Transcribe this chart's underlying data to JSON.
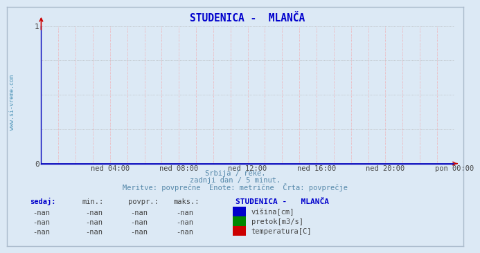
{
  "title": "STUDENICA -  MLANČA",
  "title_color": "#0000cc",
  "background_color": "#dce9f5",
  "plot_bg_color": "#dce9f5",
  "grid_color_h": "#b0b0b0",
  "grid_color_v": "#ff8888",
  "axis_color": "#0000bb",
  "x_tick_labels": [
    "ned 04:00",
    "ned 08:00",
    "ned 12:00",
    "ned 16:00",
    "ned 20:00",
    "pon 00:00"
  ],
  "x_tick_positions": [
    0.1667,
    0.3333,
    0.5,
    0.6667,
    0.8333,
    1.0
  ],
  "y_ticks": [
    0,
    1
  ],
  "ylim": [
    0,
    1
  ],
  "xlim": [
    0,
    1
  ],
  "watermark": "www.si-vreme.com",
  "watermark_color": "#5599bb",
  "subtitle1": "Srbija / reke.",
  "subtitle2": "zadnji dan / 5 minut.",
  "subtitle3": "Meritve: povprečne  Enote: metrične  Črta: povprečje",
  "subtitle_color": "#5588aa",
  "table_header": [
    "sedaj:",
    "min.:",
    "povpr.:",
    "maks.:"
  ],
  "table_header_color": "#0000cc",
  "legend_title": "STUDENICA -   MLANČA",
  "legend_title_color": "#0000cc",
  "legend_items": [
    {
      "label": "višina[cm]",
      "color": "#0000cc"
    },
    {
      "label": "pretok[m3/s]",
      "color": "#008800"
    },
    {
      "label": "temperatura[C]",
      "color": "#cc0000"
    }
  ],
  "table_rows": [
    [
      "-nan",
      "-nan",
      "-nan",
      "-nan"
    ],
    [
      "-nan",
      "-nan",
      "-nan",
      "-nan"
    ],
    [
      "-nan",
      "-nan",
      "-nan",
      "-nan"
    ]
  ],
  "zero_line_color": "#0000bb",
  "arrow_color": "#cc0000",
  "border_color": "#aabbcc"
}
